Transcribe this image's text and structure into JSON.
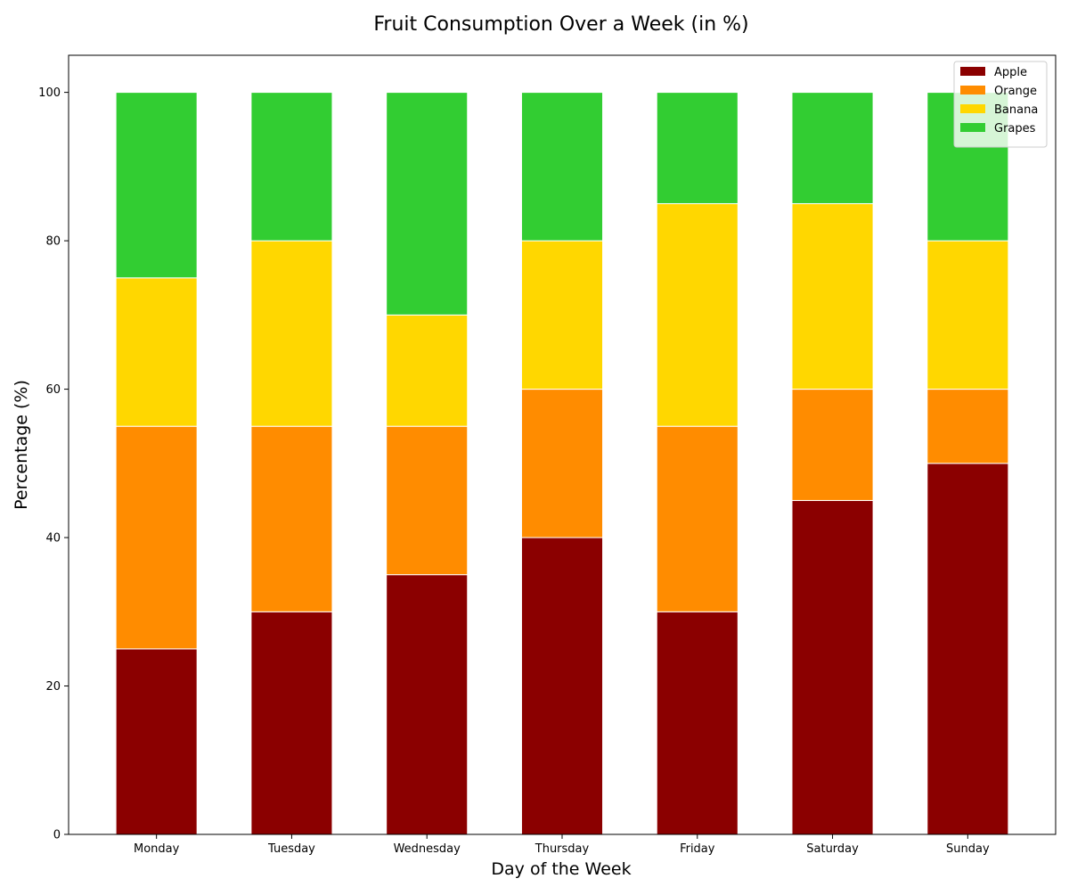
{
  "chart_data": {
    "type": "bar",
    "stacked": true,
    "title": "Fruit Consumption Over a Week (in %)",
    "xlabel": "Day of the Week",
    "ylabel": "Percentage (%)",
    "categories": [
      "Monday",
      "Tuesday",
      "Wednesday",
      "Thursday",
      "Friday",
      "Saturday",
      "Sunday"
    ],
    "series": [
      {
        "name": "Apple",
        "color": "#8b0000",
        "values": [
          25,
          30,
          35,
          40,
          30,
          45,
          50
        ]
      },
      {
        "name": "Orange",
        "color": "#ff8c00",
        "values": [
          30,
          25,
          20,
          20,
          25,
          15,
          10
        ]
      },
      {
        "name": "Banana",
        "color": "#ffd700",
        "values": [
          20,
          25,
          15,
          20,
          30,
          25,
          20
        ]
      },
      {
        "name": "Grapes",
        "color": "#32cd32",
        "values": [
          25,
          20,
          30,
          20,
          15,
          15,
          20
        ]
      }
    ],
    "ylim": [
      0,
      105
    ],
    "yticks": [
      0,
      20,
      40,
      60,
      80,
      100
    ],
    "grid": false,
    "legend_position": "top-right"
  }
}
